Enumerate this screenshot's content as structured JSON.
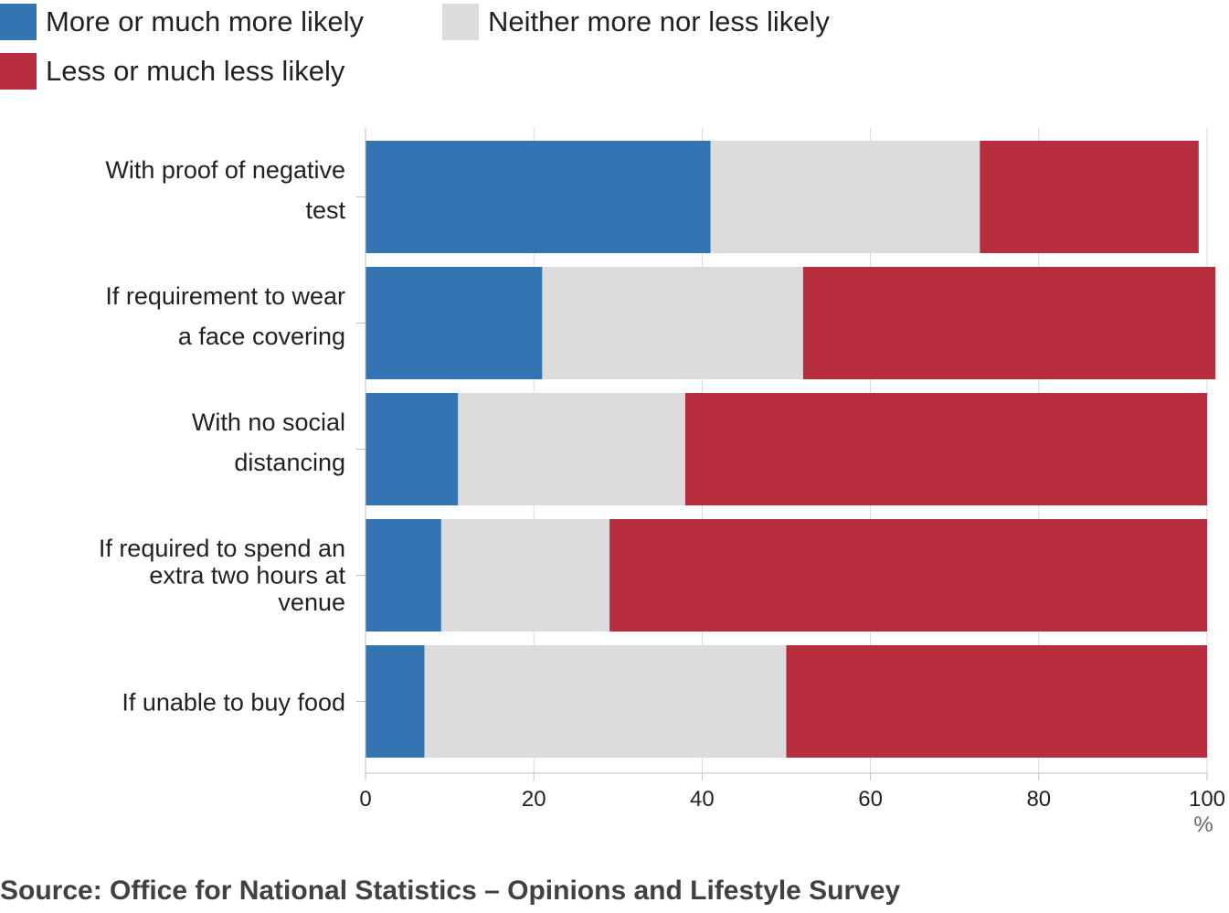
{
  "legend": {
    "items": [
      {
        "label": "More or much more likely",
        "color": "#3574b3"
      },
      {
        "label": "Neither more nor less likely",
        "color": "#dcdcdc"
      },
      {
        "label": "Less or much less likely",
        "color": "#b82d3e"
      }
    ]
  },
  "chart_data": {
    "type": "bar",
    "orientation": "horizontal",
    "stacked": true,
    "categories": [
      [
        "With proof of negative",
        "test"
      ],
      [
        "If requirement to wear",
        "a face covering"
      ],
      [
        "With no social",
        "distancing"
      ],
      [
        "If required to spend an",
        "extra two hours at",
        "venue"
      ],
      [
        "If unable to buy food"
      ]
    ],
    "series": [
      {
        "name": "More or much more likely",
        "color": "#3574b3",
        "values": [
          41,
          21,
          11,
          9,
          7
        ]
      },
      {
        "name": "Neither more nor less likely",
        "color": "#dcdcdc",
        "values": [
          32,
          31,
          27,
          20,
          43
        ]
      },
      {
        "name": "Less or much less likely",
        "color": "#b82d3e",
        "values": [
          26,
          49,
          62,
          71,
          50
        ]
      }
    ],
    "xlim": [
      0,
      100
    ],
    "xticks": [
      0,
      20,
      40,
      60,
      80,
      100
    ],
    "xunit": "%",
    "grid": true
  },
  "footer": {
    "source": "Source: Office for National Statistics – Opinions and Lifestyle Survey"
  }
}
